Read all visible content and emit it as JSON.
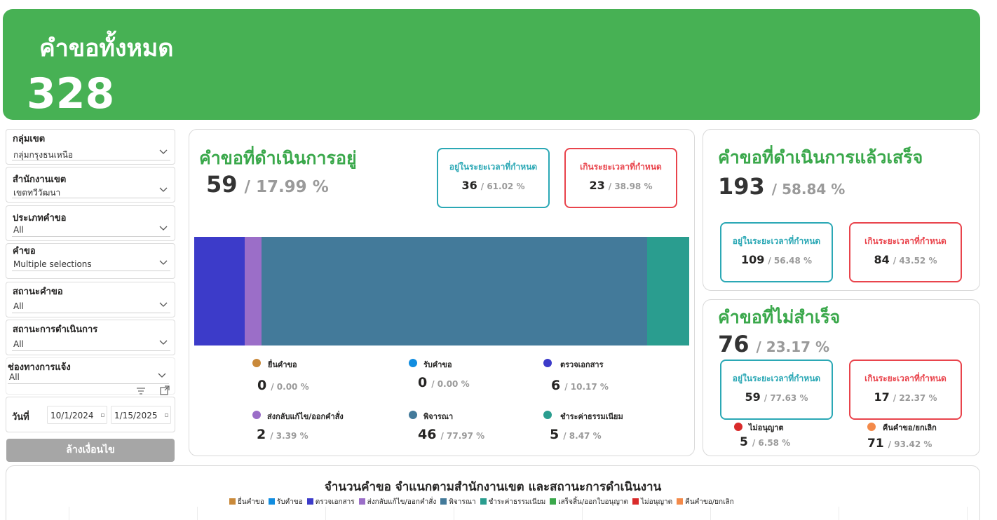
{
  "header": {
    "title": "คำขอทั้งหมด",
    "total": "328"
  },
  "filters": {
    "items": [
      {
        "label": "กลุ่มเขต",
        "value": "กลุ่มกรุงธนเหนือ"
      },
      {
        "label": "สำนักงานเขต",
        "value": "เขตทวีวัฒนา"
      },
      {
        "label": "ประเภทคำขอ",
        "value": "All"
      },
      {
        "label": "คำขอ",
        "value": "Multiple selections"
      },
      {
        "label": "สถานะคำขอ",
        "value": "All"
      },
      {
        "label": "สถานะการดำเนินการ",
        "value": "All"
      },
      {
        "label": "ช่องทางการแจ้ง",
        "value": "All"
      }
    ],
    "date": {
      "label": "วันที่",
      "from": "10/1/2024",
      "to": "1/15/2025"
    },
    "clear_label": "ล้างเงื่อนไข"
  },
  "in_progress": {
    "title": "คำขอที่ดำเนินการอยู่",
    "count": "59",
    "percent": "/ 17.99 %",
    "on_time": {
      "label": "อยู่ในระยะเวลาที่กำหนด",
      "count": "36",
      "percent": "/ 61.02 %"
    },
    "overdue": {
      "label": "เกินระยะเวลาที่กำหนด",
      "count": "23",
      "percent": "/ 38.98 %"
    },
    "stages": [
      {
        "label": "ยื่นคำขอ",
        "count": "0",
        "percent": "/ 0.00 %",
        "share": 0,
        "color": "#c9893a"
      },
      {
        "label": "รับคำขอ",
        "count": "0",
        "percent": "/ 0.00 %",
        "share": 0,
        "color": "#118de0"
      },
      {
        "label": "ตรวจเอกสาร",
        "count": "6",
        "percent": "/ 10.17 %",
        "share": 10.17,
        "color": "#3c3bc9"
      },
      {
        "label": "ส่งกลับแก้ไข/ออกคำสั่ง",
        "count": "2",
        "percent": "/ 3.39 %",
        "share": 3.39,
        "color": "#9b6ec8"
      },
      {
        "label": "พิจารณา",
        "count": "46",
        "percent": "/ 77.97 %",
        "share": 77.97,
        "color": "#437a9a"
      },
      {
        "label": "ชำระค่าธรรมเนียม",
        "count": "5",
        "percent": "/ 8.47 %",
        "share": 8.47,
        "color": "#2a9d8f"
      }
    ]
  },
  "completed": {
    "title": "คำขอที่ดำเนินการแล้วเสร็จ",
    "count": "193",
    "percent": "/ 58.84 %",
    "on_time": {
      "label": "อยู่ในระยะเวลาที่กำหนด",
      "count": "109",
      "percent": "/ 56.48 %"
    },
    "overdue": {
      "label": "เกินระยะเวลาที่กำหนด",
      "count": "84",
      "percent": "/ 43.52 %"
    }
  },
  "not_completed": {
    "title": "คำขอที่ไม่สำเร็จ",
    "count": "76",
    "percent": "/ 23.17 %",
    "on_time": {
      "label": "อยู่ในระยะเวลาที่กำหนด",
      "count": "59",
      "percent": "/ 77.63 %"
    },
    "overdue": {
      "label": "เกินระยะเวลาที่กำหนด",
      "count": "17",
      "percent": "/ 22.37 %"
    },
    "reasons": [
      {
        "label": "ไม่อนุญาต",
        "count": "5",
        "percent": "/ 6.58 %",
        "color": "#d92b2b"
      },
      {
        "label": "คืนคำขอ/ยกเลิก",
        "count": "71",
        "percent": "/ 93.42 %",
        "color": "#f38a4a"
      }
    ]
  },
  "bottom_chart": {
    "title": "จำนวนคำขอ  จำแนกตามสำนักงานเขต และสถานะการดำเนินงาน",
    "legend": [
      {
        "label": "ยื่นคำขอ",
        "color": "#c9893a"
      },
      {
        "label": "รับคำขอ",
        "color": "#118de0"
      },
      {
        "label": "ตรวจเอกสาร",
        "color": "#3c3bc9"
      },
      {
        "label": "ส่งกลับแก้ไข/ออกคำสั่ง",
        "color": "#9b6ec8"
      },
      {
        "label": "พิจารณา",
        "color": "#437a9a"
      },
      {
        "label": "ชำระค่าธรรมเนียม",
        "color": "#2a9d8f"
      },
      {
        "label": "เสร็จสิ้น/ออกใบอนุญาต",
        "color": "#3aa84b"
      },
      {
        "label": "ไม่อนุญาต",
        "color": "#d92b2b"
      },
      {
        "label": "คืนคำขอ/ยกเลิก",
        "color": "#f38a4a"
      }
    ]
  },
  "chart_data": {
    "type": "bar",
    "categories": [
      "ยื่นคำขอ",
      "รับคำขอ",
      "ตรวจเอกสาร",
      "ส่งกลับแก้ไข/ออกคำสั่ง",
      "พิจารณา",
      "ชำระค่าธรรมเนียม"
    ],
    "values": [
      0,
      0,
      6,
      2,
      46,
      5
    ],
    "percent_share": [
      0.0,
      0.0,
      10.17,
      3.39,
      77.97,
      8.47
    ],
    "stacked": "100%",
    "orientation": "horizontal"
  }
}
